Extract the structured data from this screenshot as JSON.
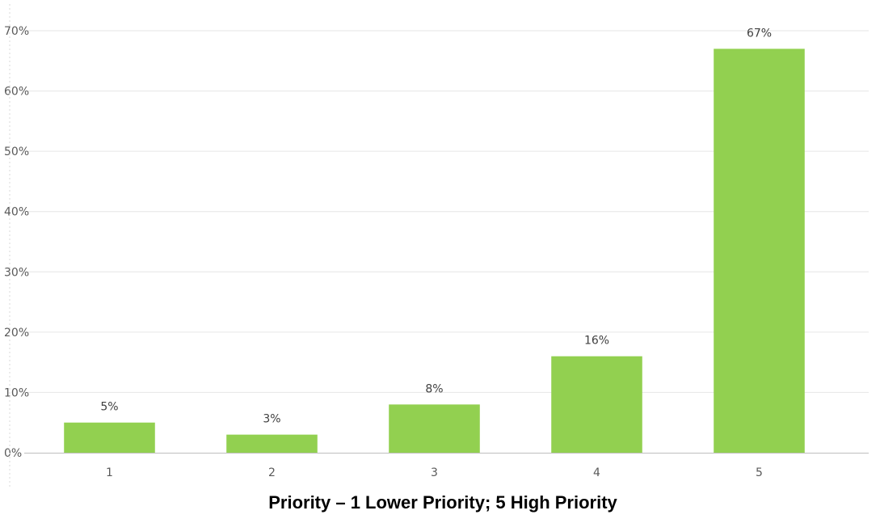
{
  "chart_data": {
    "type": "bar",
    "title": "",
    "xlabel": "Priority – 1 Lower Priority; 5 High Priority",
    "ylabel": "",
    "categories": [
      "1",
      "2",
      "3",
      "4",
      "5"
    ],
    "values": [
      5,
      3,
      8,
      16,
      67
    ],
    "data_labels": [
      "5%",
      "3%",
      "8%",
      "16%",
      "67%"
    ],
    "ylim": [
      0,
      70
    ],
    "yticks": [
      0,
      10,
      20,
      30,
      40,
      50,
      60,
      70
    ],
    "ytick_labels": [
      "0%",
      "10%",
      "20%",
      "30%",
      "40%",
      "50%",
      "60%",
      "70%"
    ],
    "grid": true,
    "legend": "none",
    "colors": {
      "bar": "#92d050",
      "grid": "#e6e6e6",
      "axis": "#bfbfbf",
      "tick_text": "#595959",
      "label_text": "#404040"
    }
  }
}
